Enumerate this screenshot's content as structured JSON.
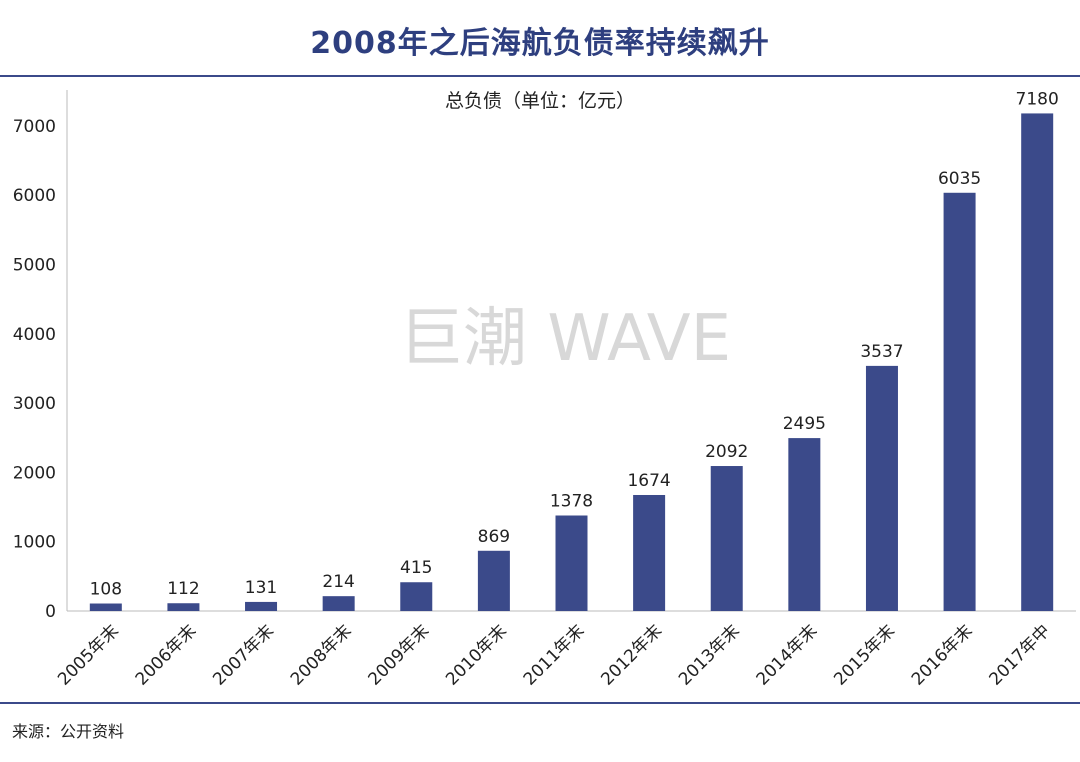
{
  "header": {
    "title": "2008年之后海航负债率持续飙升"
  },
  "footer": {
    "source": "来源：公开资料"
  },
  "watermark": "巨潮 WAVE",
  "colors": {
    "bar": "#3b4a8a",
    "title": "#2e3f7f",
    "rule": "#3b4a8a"
  },
  "chart_data": {
    "type": "bar",
    "title": "总负债（单位：亿元）",
    "xlabel": "",
    "ylabel": "",
    "categories": [
      "2005年末",
      "2006年末",
      "2007年末",
      "2008年末",
      "2009年末",
      "2010年末",
      "2011年末",
      "2012年末",
      "2013年末",
      "2014年末",
      "2015年末",
      "2016年末",
      "2017年中"
    ],
    "values": [
      108,
      112,
      131,
      214,
      415,
      869,
      1378,
      1674,
      2092,
      2495,
      3537,
      6035,
      7180
    ],
    "yticks": [
      0,
      1000,
      2000,
      3000,
      4000,
      5000,
      6000,
      7000
    ],
    "ylim": [
      0,
      7500
    ],
    "grid": false,
    "legend": "none"
  }
}
